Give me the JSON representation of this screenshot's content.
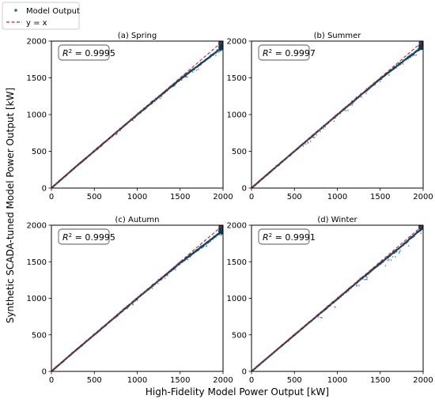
{
  "figure": {
    "xlabel": "High-Fidelity Model Power Output [kW]",
    "ylabel": "Synthetic SCADA-tuned Model Power Output [kW]"
  },
  "legend": {
    "items": [
      {
        "label": "Model Output",
        "kind": "marker",
        "color": "#2b6f8f"
      },
      {
        "label": "y = x",
        "kind": "dashed-line",
        "color": "#e0191b"
      }
    ],
    "placement": "top-left"
  },
  "colors": {
    "points": "#2b6f8f",
    "points_dark": "#10384f",
    "ref_line": "#e0191b"
  },
  "chart_data": [
    {
      "type": "scatter",
      "title": "(a) Spring",
      "r2_label": "R",
      "r2_value": "0.9995",
      "xlim": [
        0,
        2000
      ],
      "ylim": [
        0,
        2000
      ],
      "xticks": [
        0,
        500,
        1000,
        1500,
        2000
      ],
      "yticks": [
        0,
        500,
        1000,
        1500,
        2000
      ],
      "grid": false,
      "series": [
        {
          "values": [
            [
              0,
              0
            ],
            [
              250,
              255
            ],
            [
              500,
              503
            ],
            [
              750,
              752
            ],
            [
              1000,
              998
            ],
            [
              1250,
              1240
            ],
            [
              1500,
              1480
            ],
            [
              1750,
              1700
            ],
            [
              1950,
              1880
            ],
            [
              2000,
              1900
            ],
            [
              2000,
              1960
            ],
            [
              2000,
              2000
            ]
          ]
        },
        {
          "values": [
            [
              0,
              0
            ],
            [
              2000,
              2000
            ]
          ]
        }
      ]
    },
    {
      "type": "scatter",
      "title": "(b) Summer",
      "r2_label": "R",
      "r2_value": "0.9997",
      "xlim": [
        0,
        2000
      ],
      "ylim": [
        0,
        2000
      ],
      "xticks": [
        0,
        500,
        1000,
        1500,
        2000
      ],
      "yticks": [
        0,
        500,
        1000,
        1500,
        2000
      ],
      "grid": false,
      "series": [
        {
          "values": [
            [
              0,
              0
            ],
            [
              250,
              252
            ],
            [
              500,
              501
            ],
            [
              750,
              750
            ],
            [
              1000,
              998
            ],
            [
              1250,
              1243
            ],
            [
              1500,
              1485
            ],
            [
              1750,
              1710
            ],
            [
              1950,
              1885
            ],
            [
              2000,
              1900
            ],
            [
              2000,
              1960
            ],
            [
              2000,
              2000
            ]
          ]
        },
        {
          "values": [
            [
              0,
              0
            ],
            [
              2000,
              2000
            ]
          ]
        }
      ]
    },
    {
      "type": "scatter",
      "title": "(c) Autumn",
      "r2_label": "R",
      "r2_value": "0.9995",
      "xlim": [
        0,
        2000
      ],
      "ylim": [
        0,
        2000
      ],
      "xticks": [
        0,
        500,
        1000,
        1500,
        2000
      ],
      "yticks": [
        0,
        500,
        1000,
        1500,
        2000
      ],
      "grid": false,
      "series": [
        {
          "values": [
            [
              0,
              0
            ],
            [
              250,
              254
            ],
            [
              500,
              502
            ],
            [
              750,
              751
            ],
            [
              1000,
              999
            ],
            [
              1250,
              1242
            ],
            [
              1500,
              1482
            ],
            [
              1750,
              1705
            ],
            [
              1950,
              1885
            ],
            [
              2000,
              1900
            ],
            [
              2000,
              1960
            ],
            [
              2000,
              2000
            ]
          ]
        },
        {
          "values": [
            [
              0,
              0
            ],
            [
              2000,
              2000
            ]
          ]
        }
      ]
    },
    {
      "type": "scatter",
      "title": "(d) Winter",
      "r2_label": "R",
      "r2_value": "0.9991",
      "xlim": [
        0,
        2000
      ],
      "ylim": [
        0,
        2000
      ],
      "xticks": [
        0,
        500,
        1000,
        1500,
        2000
      ],
      "yticks": [
        0,
        500,
        1000,
        1500,
        2000
      ],
      "grid": false,
      "series": [
        {
          "values": [
            [
              0,
              0
            ],
            [
              250,
              250
            ],
            [
              500,
              498
            ],
            [
              750,
              745
            ],
            [
              1000,
              992
            ],
            [
              1250,
              1238
            ],
            [
              1500,
              1478
            ],
            [
              1750,
              1715
            ],
            [
              1950,
              1920
            ],
            [
              2000,
              1960
            ],
            [
              2000,
              2000
            ]
          ]
        },
        {
          "values": [
            [
              0,
              0
            ],
            [
              2000,
              2000
            ]
          ]
        }
      ]
    }
  ]
}
